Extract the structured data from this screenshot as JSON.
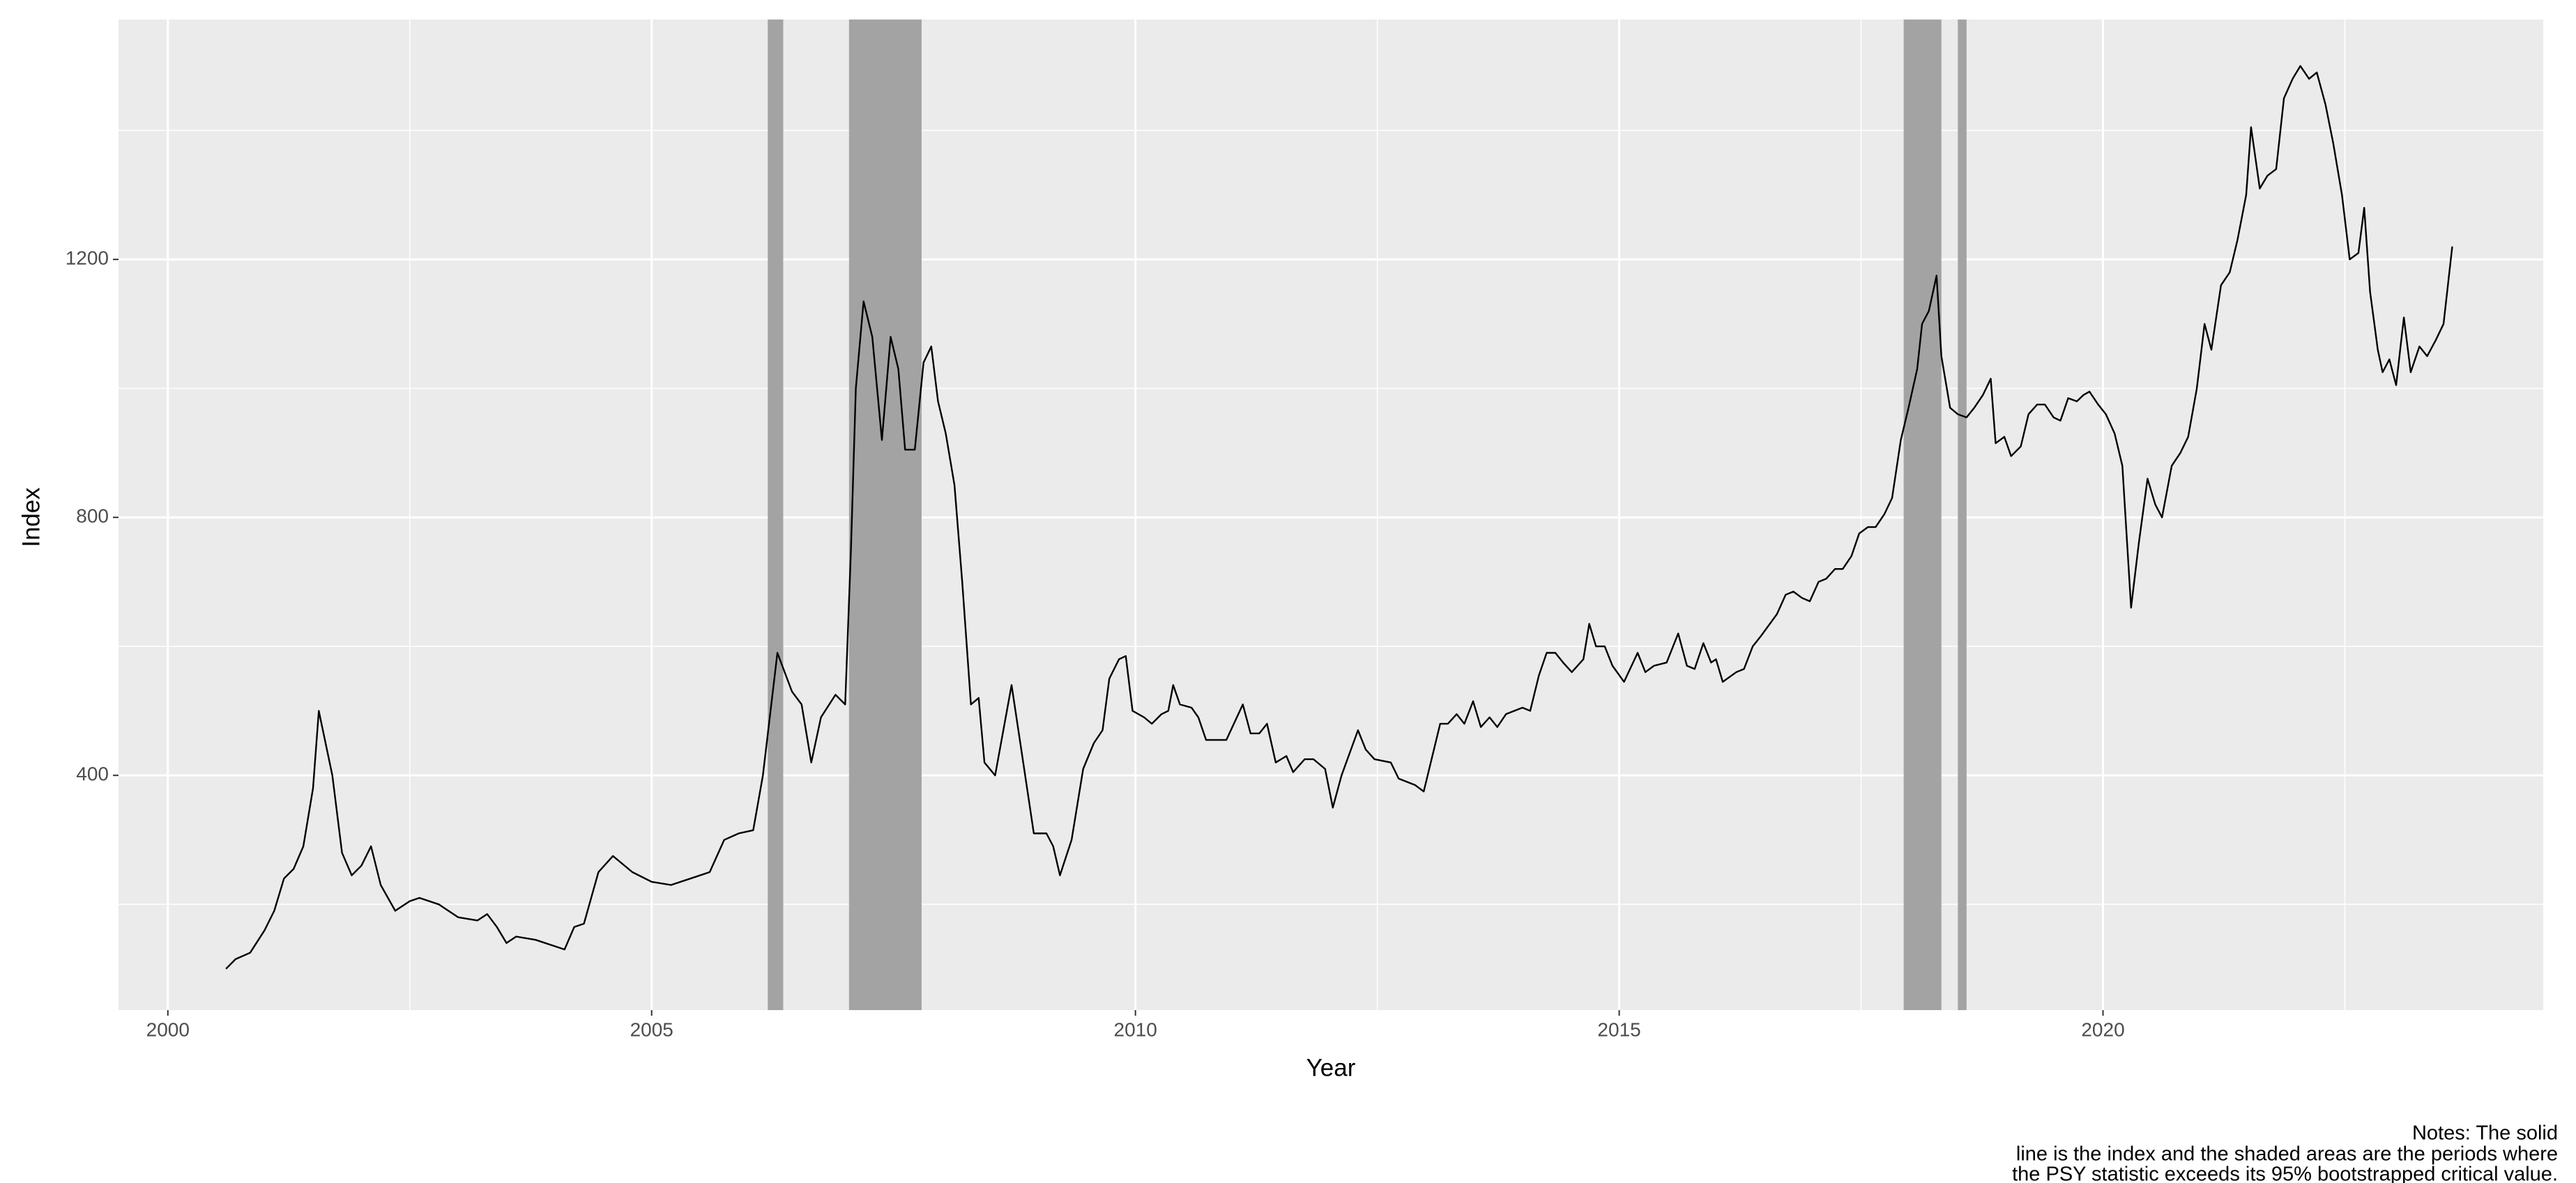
{
  "chart_data": {
    "type": "line",
    "x_label": "Year",
    "y_label": "Index",
    "notes": [
      "Notes: The solid",
      "line is the index and the shaded areas are the periods where",
      "the PSY statistic exceeds its 95% bootstrapped critical value."
    ],
    "x": [
      2000.6,
      2000.7,
      2000.85,
      2001.0,
      2001.1,
      2001.2,
      2001.3,
      2001.4,
      2001.5,
      2001.56,
      2001.7,
      2001.8,
      2001.9,
      2002.0,
      2002.1,
      2002.2,
      2002.35,
      2002.5,
      2002.6,
      2002.8,
      2003.0,
      2003.2,
      2003.3,
      2003.4,
      2003.5,
      2003.6,
      2003.8,
      2004.0,
      2004.1,
      2004.2,
      2004.3,
      2004.45,
      2004.6,
      2004.8,
      2005.0,
      2005.2,
      2005.4,
      2005.6,
      2005.75,
      2005.9,
      2006.05,
      2006.15,
      2006.3,
      2006.45,
      2006.55,
      2006.65,
      2006.75,
      2006.9,
      2007.0,
      2007.06,
      2007.11,
      2007.19,
      2007.28,
      2007.38,
      2007.47,
      2007.55,
      2007.62,
      2007.72,
      2007.81,
      2007.89,
      2007.96,
      2008.04,
      2008.13,
      2008.21,
      2008.3,
      2008.38,
      2008.44,
      2008.55,
      2008.72,
      2008.84,
      2008.95,
      2009.08,
      2009.15,
      2009.22,
      2009.34,
      2009.46,
      2009.57,
      2009.66,
      2009.73,
      2009.83,
      2009.9,
      2009.97,
      2010.09,
      2010.17,
      2010.27,
      2010.34,
      2010.39,
      2010.46,
      2010.58,
      2010.65,
      2010.73,
      2010.94,
      2011.11,
      2011.19,
      2011.28,
      2011.36,
      2011.45,
      2011.56,
      2011.63,
      2011.75,
      2011.84,
      2011.96,
      2012.04,
      2012.13,
      2012.3,
      2012.38,
      2012.47,
      2012.64,
      2012.72,
      2012.89,
      2012.98,
      2013.15,
      2013.23,
      2013.32,
      2013.4,
      2013.49,
      2013.57,
      2013.66,
      2013.74,
      2013.83,
      2014.0,
      2014.08,
      2014.17,
      2014.25,
      2014.34,
      2014.42,
      2014.51,
      2014.63,
      2014.69,
      2014.76,
      2014.85,
      2014.93,
      2015.05,
      2015.19,
      2015.27,
      2015.36,
      2015.49,
      2015.61,
      2015.7,
      2015.78,
      2015.87,
      2015.95,
      2016.0,
      2016.07,
      2016.21,
      2016.29,
      2016.38,
      2016.46,
      2016.63,
      2016.72,
      2016.8,
      2016.89,
      2016.97,
      2017.06,
      2017.14,
      2017.23,
      2017.31,
      2017.4,
      2017.48,
      2017.57,
      2017.65,
      2017.74,
      2017.82,
      2017.91,
      2017.99,
      2018.08,
      2018.13,
      2018.2,
      2018.28,
      2018.33,
      2018.42,
      2018.5,
      2018.59,
      2018.67,
      2018.76,
      2018.84,
      2018.89,
      2018.98,
      2019.05,
      2019.15,
      2019.23,
      2019.32,
      2019.4,
      2019.49,
      2019.56,
      2019.64,
      2019.73,
      2019.8,
      2019.86,
      2019.95,
      2020.03,
      2020.12,
      2020.2,
      2020.29,
      2020.37,
      2020.46,
      2020.54,
      2020.61,
      2020.71,
      2020.8,
      2020.88,
      2020.97,
      2021.05,
      2021.12,
      2021.22,
      2021.31,
      2021.39,
      2021.48,
      2021.53,
      2021.62,
      2021.7,
      2021.79,
      2021.87,
      2021.96,
      2022.04,
      2022.13,
      2022.21,
      2022.3,
      2022.38,
      2022.47,
      2022.55,
      2022.64,
      2022.7,
      2022.76,
      2022.84,
      2022.89,
      2022.96,
      2023.03,
      2023.11,
      2023.18,
      2023.27,
      2023.35,
      2023.44,
      2023.52,
      2023.61
    ],
    "values": [
      100,
      115,
      125,
      160,
      190,
      240,
      255,
      290,
      380,
      500,
      400,
      280,
      245,
      260,
      290,
      230,
      190,
      205,
      210,
      200,
      180,
      175,
      185,
      165,
      140,
      150,
      145,
      135,
      130,
      165,
      170,
      250,
      275,
      250,
      235,
      230,
      240,
      250,
      300,
      310,
      315,
      400,
      590,
      530,
      510,
      420,
      490,
      525,
      510,
      750,
      1000,
      1135,
      1080,
      920,
      1080,
      1030,
      905,
      905,
      1040,
      1065,
      980,
      930,
      850,
      700,
      510,
      520,
      420,
      400,
      540,
      420,
      310,
      310,
      290,
      245,
      300,
      410,
      450,
      470,
      550,
      580,
      585,
      500,
      490,
      480,
      495,
      500,
      540,
      510,
      505,
      490,
      455,
      455,
      510,
      465,
      465,
      480,
      420,
      430,
      405,
      425,
      425,
      410,
      350,
      400,
      470,
      440,
      425,
      420,
      395,
      385,
      375,
      480,
      480,
      495,
      480,
      515,
      475,
      490,
      475,
      495,
      505,
      500,
      555,
      590,
      590,
      575,
      560,
      580,
      635,
      600,
      600,
      570,
      545,
      590,
      560,
      570,
      575,
      620,
      570,
      565,
      605,
      575,
      580,
      545,
      560,
      565,
      600,
      615,
      650,
      680,
      685,
      675,
      670,
      700,
      705,
      720,
      720,
      740,
      775,
      785,
      785,
      805,
      830,
      920,
      970,
      1030,
      1100,
      1120,
      1175,
      1050,
      970,
      960,
      955,
      970,
      990,
      1015,
      915,
      925,
      895,
      910,
      960,
      975,
      975,
      955,
      950,
      985,
      980,
      990,
      995,
      975,
      960,
      930,
      880,
      660,
      760,
      860,
      820,
      800,
      880,
      900,
      925,
      1000,
      1100,
      1060,
      1160,
      1180,
      1230,
      1300,
      1405,
      1310,
      1330,
      1340,
      1450,
      1480,
      1500,
      1480,
      1490,
      1440,
      1380,
      1300,
      1200,
      1210,
      1280,
      1150,
      1060,
      1025,
      1045,
      1005,
      1110,
      1025,
      1065,
      1050,
      1075,
      1100,
      1220
    ],
    "color": "#000000",
    "shaded_periods": [
      [
        2006.2,
        2006.36
      ],
      [
        2007.04,
        2007.79
      ],
      [
        2017.94,
        2018.33
      ],
      [
        2018.5,
        2018.59
      ]
    ],
    "shade_color": "#a3a3a3",
    "xlim": [
      1999.49,
      2024.55
    ],
    "xticks": [
      2000,
      2005,
      2010,
      2015,
      2020
    ],
    "x_minor_ticks": [
      2002.5,
      2007.5,
      2012.5,
      2017.5,
      2022.5
    ],
    "ylim": [
      36,
      1572
    ],
    "yticks": [
      400,
      800,
      1200
    ],
    "y_minor_ticks": [
      200,
      600,
      1000,
      1400
    ],
    "grid": true,
    "panel_color": "#ebebeb"
  }
}
